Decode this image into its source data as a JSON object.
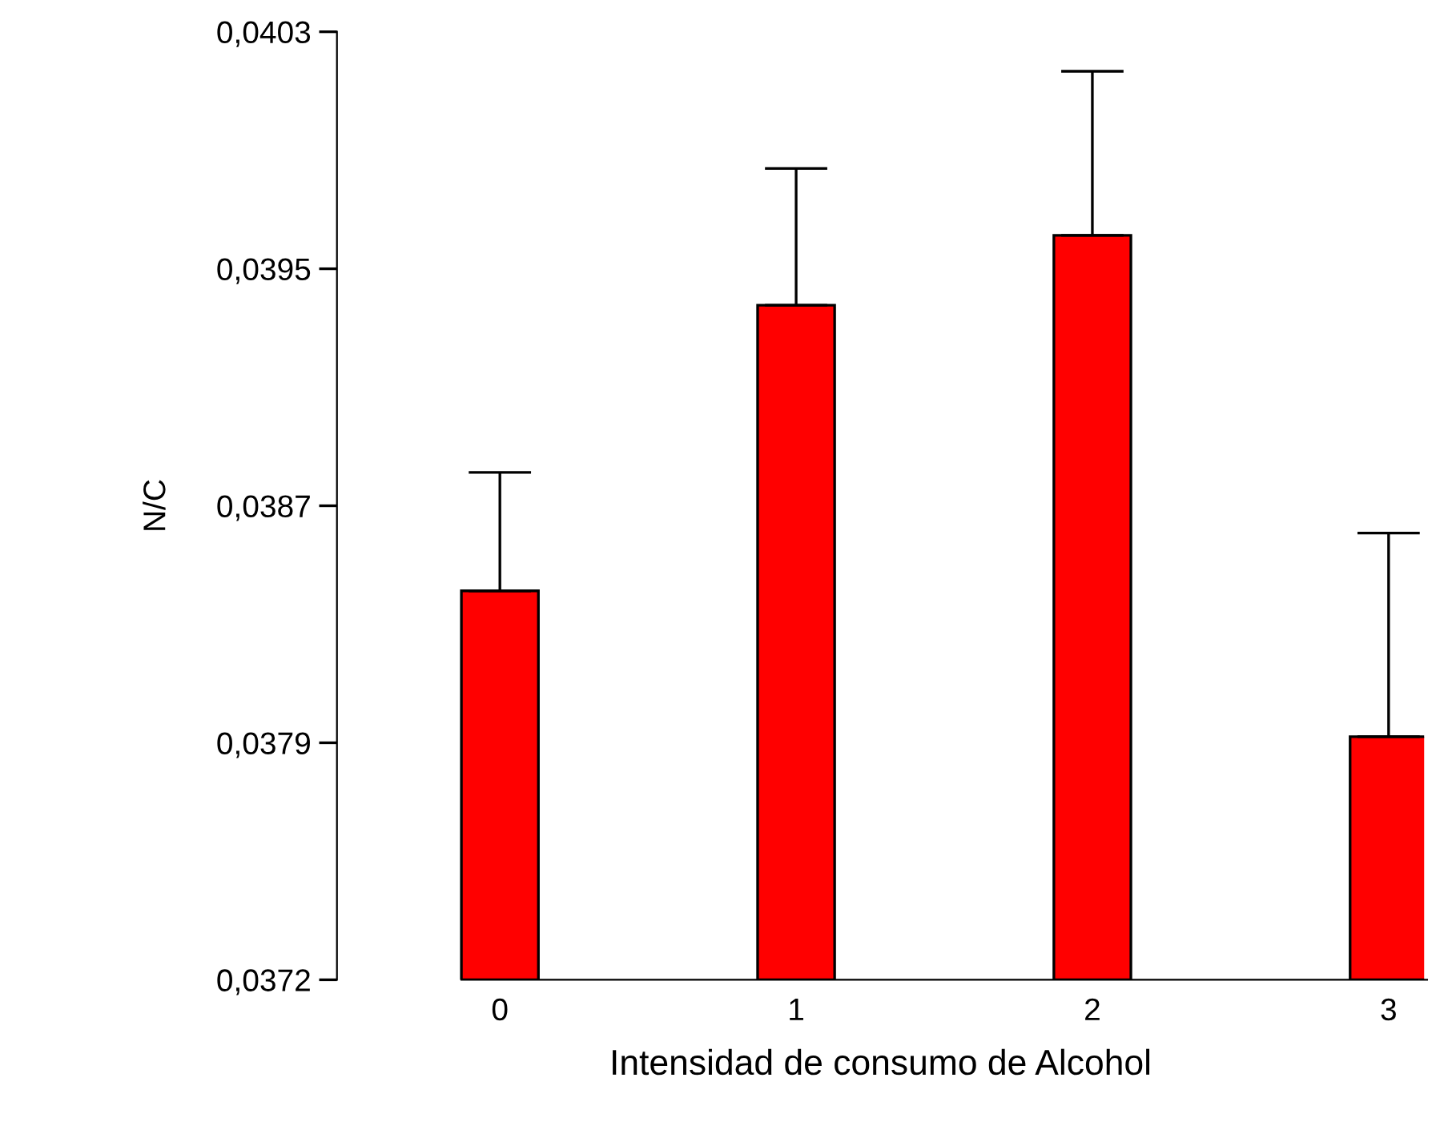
{
  "chart_data": {
    "type": "bar",
    "xlabel": "Intensidad de consumo de Alcohol",
    "ylabel": "N/C",
    "categories": [
      "0",
      "1",
      "2",
      "3"
    ],
    "values": [
      0.03844,
      0.03938,
      0.03961,
      0.03796
    ],
    "errors": [
      [
        0.03844,
        0.03883
      ],
      [
        0.03938,
        0.03983
      ],
      [
        0.03961,
        0.04015
      ],
      [
        0.03796,
        0.03863
      ]
    ],
    "color": "#ff0000",
    "ylim": [
      0.03716,
      0.04028
    ],
    "yticks": [
      {
        "value": 0.03716,
        "label": "0,0372"
      },
      {
        "value": 0.03794,
        "label": "0,0379"
      },
      {
        "value": 0.03872,
        "label": "0,0387"
      },
      {
        "value": 0.0395,
        "label": "0,0395"
      },
      {
        "value": 0.04028,
        "label": "0,0403"
      }
    ],
    "grid": false,
    "legend": false
  }
}
